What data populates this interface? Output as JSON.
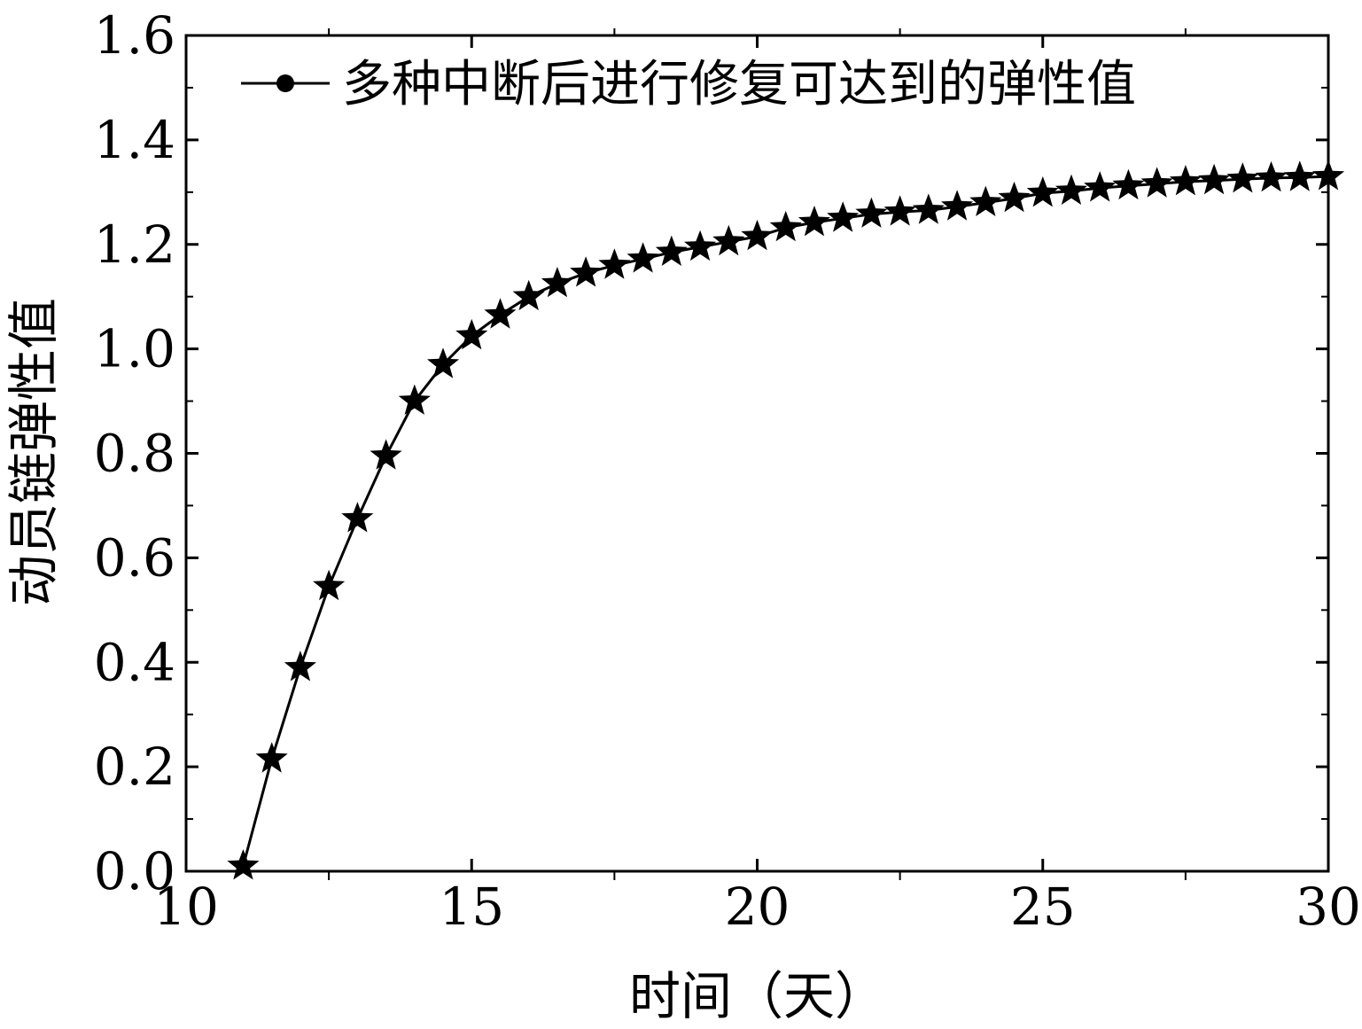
{
  "chart_data": {
    "type": "line",
    "title": "",
    "xlabel": "时间（天）",
    "ylabel": "动员链弹性值",
    "xlim": [
      10,
      30
    ],
    "ylim": [
      0,
      1.6
    ],
    "xticks": [
      10,
      15,
      20,
      25,
      30
    ],
    "yticks": [
      0.0,
      0.2,
      0.4,
      0.6,
      0.8,
      1.0,
      1.2,
      1.4,
      1.6
    ],
    "xtick_labels": [
      "10",
      "15",
      "20",
      "25",
      "30"
    ],
    "ytick_labels": [
      "0.0",
      "0.2",
      "0.4",
      "0.6",
      "0.8",
      "1.0",
      "1.2",
      "1.4",
      "1.6"
    ],
    "grid": false,
    "legend_position": "top-right",
    "series": [
      {
        "name": "多种中断后进行修复可达到的弹性值",
        "marker": "star",
        "color": "#000000",
        "x": [
          11,
          11.5,
          12,
          12.5,
          13,
          13.5,
          14,
          14.5,
          15,
          15.5,
          16,
          16.5,
          17,
          17.5,
          18,
          18.5,
          19,
          19.5,
          20,
          20.5,
          21,
          21.5,
          22,
          22.5,
          23,
          23.5,
          24,
          24.5,
          25,
          25.5,
          26,
          26.5,
          27,
          27.5,
          28,
          28.5,
          29,
          29.5,
          30
        ],
        "y": [
          0.01,
          0.215,
          0.39,
          0.545,
          0.675,
          0.795,
          0.9,
          0.97,
          1.025,
          1.065,
          1.1,
          1.125,
          1.145,
          1.16,
          1.172,
          1.185,
          1.195,
          1.205,
          1.215,
          1.232,
          1.242,
          1.25,
          1.258,
          1.262,
          1.265,
          1.272,
          1.28,
          1.288,
          1.298,
          1.302,
          1.308,
          1.312,
          1.316,
          1.32,
          1.322,
          1.325,
          1.327,
          1.328,
          1.33
        ]
      }
    ]
  }
}
